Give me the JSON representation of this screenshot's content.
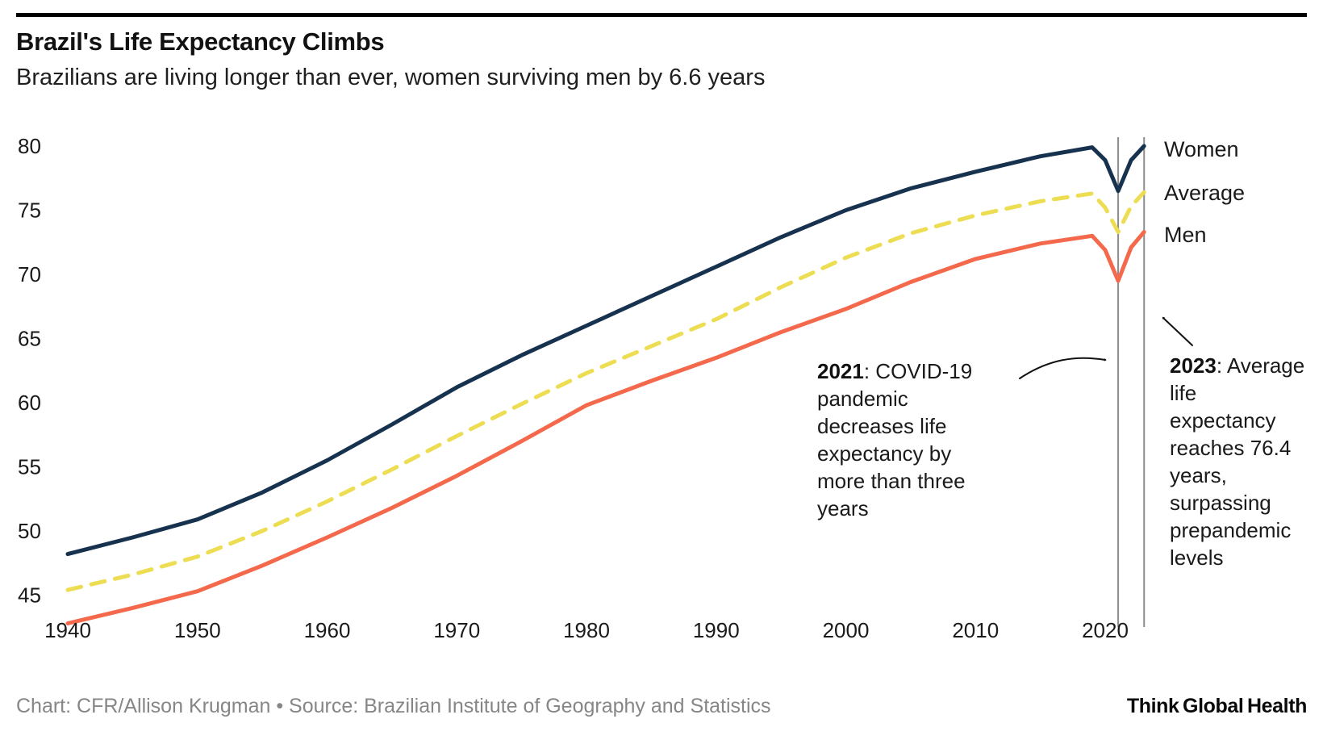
{
  "header": {
    "title": "Brazil's Life Expectancy Climbs",
    "subtitle": "Brazilians are living longer than ever, women surviving men by 6.6 years"
  },
  "colors": {
    "women_line": "#16324f",
    "average_line": "#ecdd52",
    "men_line": "#f4694c",
    "event_rule": "#8c8c8c",
    "axis_text": "#1a1a1a",
    "footer_text": "#868686",
    "top_rule": "#000000"
  },
  "chart_data": {
    "type": "line",
    "title": "Brazil's Life Expectancy Climbs",
    "subtitle": "Brazilians are living longer than ever, women surviving men by 6.6 years",
    "xlabel": "",
    "ylabel": "",
    "xlim": [
      1940,
      2023
    ],
    "ylim": [
      42,
      81
    ],
    "grid": false,
    "legend_position": "right",
    "x_ticks": [
      1940,
      1950,
      1960,
      1970,
      1980,
      1990,
      2000,
      2010,
      2020
    ],
    "y_ticks": [
      45,
      50,
      55,
      60,
      65,
      70,
      75,
      80
    ],
    "x": [
      1940,
      1945,
      1950,
      1955,
      1960,
      1965,
      1970,
      1975,
      1980,
      1985,
      1990,
      1995,
      2000,
      2005,
      2010,
      2015,
      2019,
      2020,
      2021,
      2022,
      2023
    ],
    "series": [
      {
        "name": "Women",
        "color": "#16324f",
        "dashed": false,
        "values": [
          48.2,
          49.5,
          50.9,
          53.0,
          55.5,
          58.3,
          61.2,
          63.7,
          66.0,
          68.3,
          70.6,
          72.9,
          75.0,
          76.7,
          78.0,
          79.2,
          79.9,
          78.9,
          76.5,
          78.9,
          80.0
        ]
      },
      {
        "name": "Average",
        "color": "#ecdd52",
        "dashed": true,
        "values": [
          45.4,
          46.6,
          48.0,
          50.0,
          52.3,
          54.8,
          57.4,
          59.9,
          62.3,
          64.4,
          66.5,
          69.0,
          71.3,
          73.2,
          74.6,
          75.7,
          76.3,
          75.2,
          73.3,
          75.3,
          76.4
        ]
      },
      {
        "name": "Men",
        "color": "#f4694c",
        "dashed": false,
        "values": [
          42.8,
          44.0,
          45.3,
          47.3,
          49.5,
          51.8,
          54.3,
          57.0,
          59.8,
          61.7,
          63.5,
          65.5,
          67.3,
          69.4,
          71.2,
          72.4,
          73.0,
          71.9,
          69.5,
          72.1,
          73.3
        ]
      }
    ],
    "event_lines": [
      {
        "year": 2021
      },
      {
        "year": 2023
      }
    ],
    "annotations": [
      {
        "year_bold": "2021",
        "rest": ": COVID-19 pandemic decreases life expectancy by more than three years"
      },
      {
        "year_bold": "2023",
        "rest": ": Average life expectancy reaches 76.4 years, surpassing prepandemic levels"
      }
    ]
  },
  "footer": {
    "credit": "Chart: CFR/Allison Krugman • Source: Brazilian Institute of Geography and Statistics",
    "logo": "Think Global Health"
  }
}
